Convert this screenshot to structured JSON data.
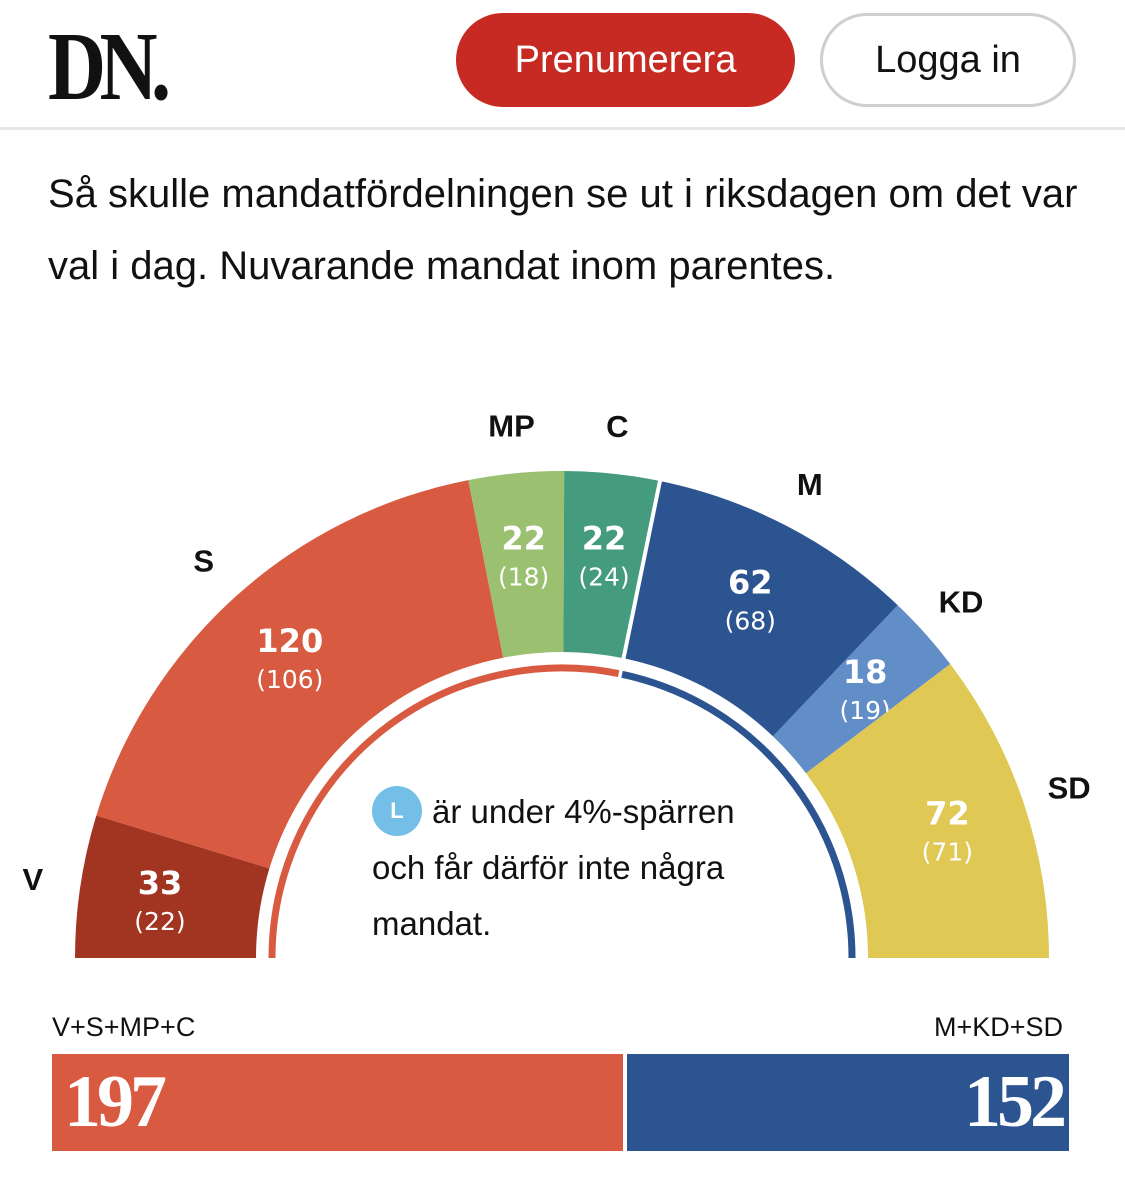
{
  "header": {
    "logo": "DN.",
    "subscribe_label": "Prenumerera",
    "login_label": "Logga in",
    "subscribe_color": "#c62a22"
  },
  "intro": "Så skulle mandatfördelningen se ut i riksdagen om det var val i dag. Nuvarande mandat inom parentes.",
  "note": {
    "badge": "L",
    "text": "är under 4%-spärren och får därför inte några mandat."
  },
  "chart_data": {
    "type": "pie",
    "subtype": "parliament-semicircle",
    "title": "Så skulle mandatfördelningen se ut i riksdagen om det var val i dag. Nuvarande mandat inom parentes.",
    "total_seats": 349,
    "parties": [
      {
        "name": "V",
        "seats": 33,
        "current": 22,
        "current_label": "(22)",
        "color": "#a23522"
      },
      {
        "name": "S",
        "seats": 120,
        "current": 106,
        "current_label": "(106)",
        "color": "#d85a41"
      },
      {
        "name": "MP",
        "seats": 22,
        "current": 18,
        "current_label": "(18)",
        "color": "#9bc170"
      },
      {
        "name": "C",
        "seats": 22,
        "current": 24,
        "current_label": "(24)",
        "color": "#459b7e"
      },
      {
        "name": "M",
        "seats": 62,
        "current": 68,
        "current_label": "(68)",
        "color": "#2c5490"
      },
      {
        "name": "KD",
        "seats": 18,
        "current": 19,
        "current_label": "(19)",
        "color": "#628ec8"
      },
      {
        "name": "SD",
        "seats": 72,
        "current": 71,
        "current_label": "(71)",
        "color": "#dfc853"
      }
    ],
    "blocs": [
      {
        "label": "V+S+MP+C",
        "seats": 197,
        "seats_label": "197",
        "color": "#d85a41"
      },
      {
        "label": "M+KD+SD",
        "seats": 152,
        "seats_label": "152",
        "color": "#2c5490"
      }
    ],
    "below_threshold": [
      {
        "name": "L",
        "color": "#74bfe8"
      }
    ]
  }
}
